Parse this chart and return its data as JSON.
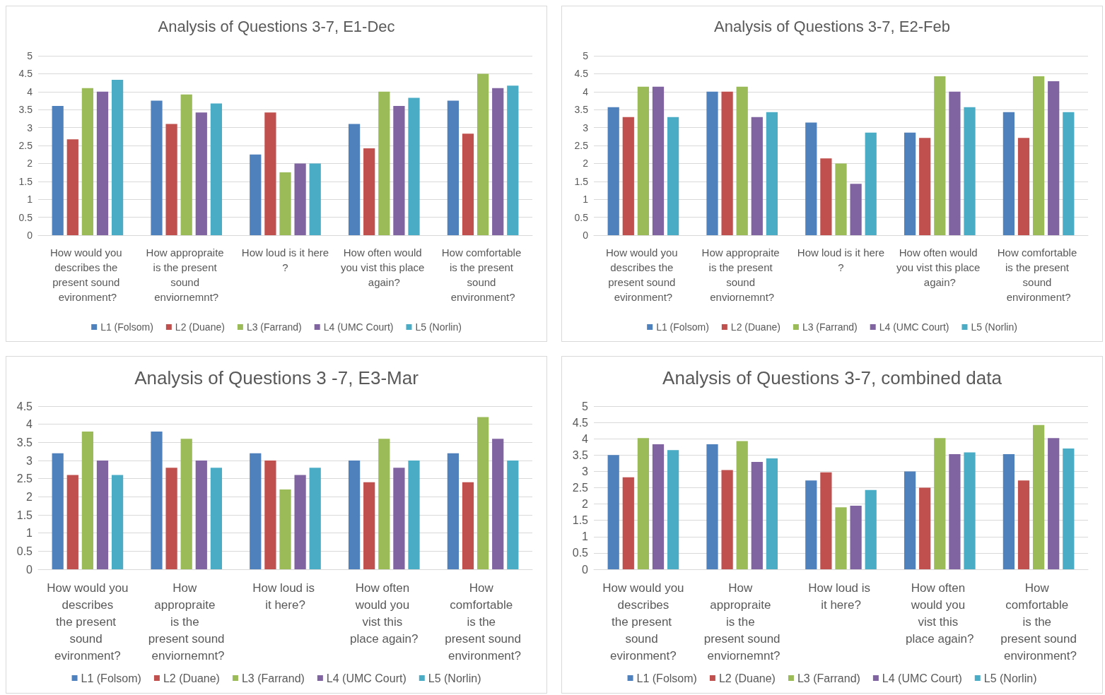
{
  "chart_data": [
    {
      "type": "bar",
      "title": "Analysis of Questions 3-7, E1-Dec",
      "categories": [
        "How would you describes the present sound evironment?",
        "How appropraite is the present sound enviornemnt?",
        "How loud is it here?",
        "How often would you vist this place again?",
        "How comfortable is the present sound environment?"
      ],
      "series": [
        {
          "name": "L1 (Folsom)",
          "color": "#4f81bd",
          "values": [
            3.6,
            3.75,
            2.25,
            3.1,
            3.75
          ]
        },
        {
          "name": "L2 (Duane)",
          "color": "#c0504d",
          "values": [
            2.67,
            3.1,
            3.42,
            2.42,
            2.83
          ]
        },
        {
          "name": "L3 (Farrand)",
          "color": "#9bbb59",
          "values": [
            4.1,
            3.92,
            1.75,
            4.0,
            4.5
          ]
        },
        {
          "name": "L4 (UMC Court)",
          "color": "#8064a2",
          "values": [
            4.0,
            3.42,
            2.0,
            3.6,
            4.1
          ]
        },
        {
          "name": "L5 (Norlin)",
          "color": "#4bacc6",
          "values": [
            4.33,
            3.67,
            2.0,
            3.83,
            4.17
          ]
        }
      ],
      "ylim": [
        0,
        5
      ],
      "yticks": [
        0,
        0.5,
        1,
        1.5,
        2,
        2.5,
        3,
        3.5,
        4,
        4.5,
        5
      ],
      "grid": "y",
      "legend": "bottom"
    },
    {
      "type": "bar",
      "title": "Analysis of Questions 3-7, E2-Feb",
      "categories": [
        "How would you describes the present sound evironment?",
        "How appropraite is the present sound enviornemnt?",
        "How loud is it here?",
        "How often would you vist this place again?",
        "How comfortable is the present sound environment?"
      ],
      "series": [
        {
          "name": "L1 (Folsom)",
          "color": "#4f81bd",
          "values": [
            3.57,
            4.0,
            3.14,
            2.86,
            3.43
          ]
        },
        {
          "name": "L2 (Duane)",
          "color": "#c0504d",
          "values": [
            3.29,
            4.0,
            2.14,
            2.71,
            2.71
          ]
        },
        {
          "name": "L3 (Farrand)",
          "color": "#9bbb59",
          "values": [
            4.14,
            4.14,
            2.0,
            4.43,
            4.43
          ]
        },
        {
          "name": "L4 (UMC Court)",
          "color": "#8064a2",
          "values": [
            4.14,
            3.29,
            1.43,
            4.0,
            4.29
          ]
        },
        {
          "name": "L5 (Norlin)",
          "color": "#4bacc6",
          "values": [
            3.29,
            3.43,
            2.86,
            3.57,
            3.43
          ]
        }
      ],
      "ylim": [
        0,
        5
      ],
      "yticks": [
        0,
        0.5,
        1,
        1.5,
        2,
        2.5,
        3,
        3.5,
        4,
        4.5,
        5
      ],
      "grid": "y",
      "legend": "bottom"
    },
    {
      "type": "bar",
      "title": "Analysis of Questions 3 -7, E3-Mar",
      "categories": [
        "How would you describes the present sound evironment?",
        "How appropraite is the present sound enviornemnt?",
        "How loud is it here?",
        "How often would you vist this place again?",
        "How comfortable is the present sound environment?"
      ],
      "series": [
        {
          "name": "L1 (Folsom)",
          "color": "#4f81bd",
          "values": [
            3.2,
            3.8,
            3.2,
            3.0,
            3.2
          ]
        },
        {
          "name": "L2 (Duane)",
          "color": "#c0504d",
          "values": [
            2.6,
            2.8,
            3.0,
            2.4,
            2.4
          ]
        },
        {
          "name": "L3 (Farrand)",
          "color": "#9bbb59",
          "values": [
            3.8,
            3.6,
            2.2,
            3.6,
            4.2
          ]
        },
        {
          "name": "L4 (UMC Court)",
          "color": "#8064a2",
          "values": [
            3.0,
            3.0,
            2.6,
            2.8,
            3.6
          ]
        },
        {
          "name": "L5 (Norlin)",
          "color": "#4bacc6",
          "values": [
            2.6,
            2.8,
            2.8,
            3.0,
            3.0
          ]
        }
      ],
      "ylim": [
        0,
        4.5
      ],
      "yticks": [
        0,
        0.5,
        1,
        1.5,
        2,
        2.5,
        3,
        3.5,
        4,
        4.5
      ],
      "grid": "y",
      "legend": "bottom"
    },
    {
      "type": "bar",
      "title": "Analysis of Questions 3-7, combined data",
      "categories": [
        "How would you describes the present sound evironment?",
        "How appropraite is the present sound enviornemnt?",
        "How loud is it here?",
        "How often would you vist this place again?",
        "How comfortable is the present sound environment?"
      ],
      "series": [
        {
          "name": "L1 (Folsom)",
          "color": "#4f81bd",
          "values": [
            3.5,
            3.83,
            2.72,
            3.0,
            3.53
          ]
        },
        {
          "name": "L2 (Duane)",
          "color": "#c0504d",
          "values": [
            2.82,
            3.04,
            2.97,
            2.5,
            2.72
          ]
        },
        {
          "name": "L3 (Farrand)",
          "color": "#9bbb59",
          "values": [
            4.02,
            3.93,
            1.9,
            4.02,
            4.42
          ]
        },
        {
          "name": "L4 (UMC Court)",
          "color": "#8064a2",
          "values": [
            3.83,
            3.29,
            1.95,
            3.53,
            4.02
          ]
        },
        {
          "name": "L5 (Norlin)",
          "color": "#4bacc6",
          "values": [
            3.65,
            3.4,
            2.43,
            3.58,
            3.7
          ]
        }
      ],
      "ylim": [
        0,
        5
      ],
      "yticks": [
        0,
        0.5,
        1,
        1.5,
        2,
        2.5,
        3,
        3.5,
        4,
        4.5,
        5
      ],
      "grid": "y",
      "legend": "bottom"
    }
  ]
}
